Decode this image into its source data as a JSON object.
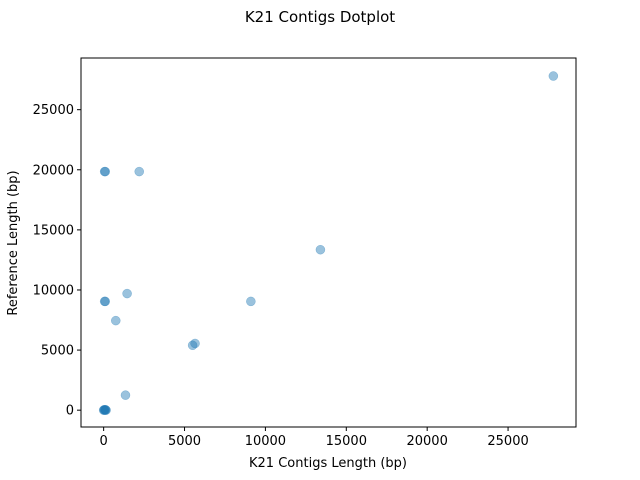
{
  "chart_data": {
    "type": "scatter",
    "title": "K21 Contigs Dotplot",
    "xlabel": "K21 Contigs Length (bp)",
    "ylabel": "Reference Length (bp)",
    "xlim": [
      -1400,
      29200
    ],
    "ylim": [
      -1400,
      29300
    ],
    "xticks": [
      0,
      5000,
      10000,
      15000,
      20000,
      25000
    ],
    "yticks": [
      0,
      5000,
      10000,
      15000,
      20000,
      25000
    ],
    "grid": false,
    "marker_color": "#1f77b4",
    "marker_alpha": 0.45,
    "points": [
      {
        "x": 27800,
        "y": 27800
      },
      {
        "x": 60,
        "y": 19850
      },
      {
        "x": 100,
        "y": 19850
      },
      {
        "x": 2200,
        "y": 19850
      },
      {
        "x": 13400,
        "y": 13350
      },
      {
        "x": 60,
        "y": 9050
      },
      {
        "x": 100,
        "y": 9050
      },
      {
        "x": 1450,
        "y": 9700
      },
      {
        "x": 9100,
        "y": 9050
      },
      {
        "x": 750,
        "y": 7450
      },
      {
        "x": 5500,
        "y": 5400
      },
      {
        "x": 5650,
        "y": 5550
      },
      {
        "x": 1350,
        "y": 1250
      },
      {
        "x": 0,
        "y": 0
      },
      {
        "x": 30,
        "y": 30
      },
      {
        "x": 60,
        "y": 0
      },
      {
        "x": 90,
        "y": 40
      },
      {
        "x": 120,
        "y": 20
      },
      {
        "x": 150,
        "y": 0
      }
    ]
  }
}
